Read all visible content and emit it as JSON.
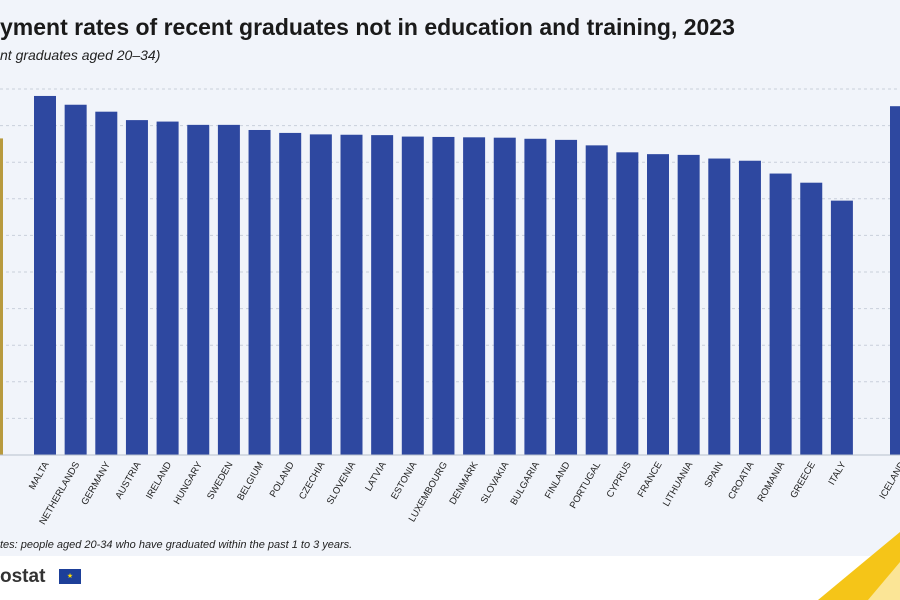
{
  "title": "yment rates of recent graduates not in education and training, 2023",
  "subtitle": "nt graduates aged 20–34)",
  "note": "tes: people aged 20-34 who have graduated within the past 1 to 3 years.",
  "brand": "ostat",
  "eu_flag_icon": "eu-flag-icon",
  "colors": {
    "bar": "#2e48a0",
    "highlight": "#b89a3e",
    "background": "#f1f4fa",
    "gridline": "#c9cfdb",
    "corner_accent": "#f5c518"
  },
  "chart_data": {
    "type": "bar",
    "title": "yment rates of recent graduates not in education and training, 2023",
    "subtitle": "nt graduates aged 20–34)",
    "ylim": [
      0,
      100
    ],
    "grid": true,
    "highlight_value": 86.5,
    "categories": [
      "MALTA",
      "NETHERLANDS",
      "GERMANY",
      "AUSTRIA",
      "IRELAND",
      "HUNGARY",
      "SWEDEN",
      "BELGIUM",
      "POLAND",
      "CZECHIA",
      "SLOVENIA",
      "LATVIA",
      "ESTONIA",
      "LUXEMBOURG",
      "DENMARK",
      "SLOVAKIA",
      "BULGARIA",
      "FINLAND",
      "PORTUGAL",
      "CYPRUS",
      "FRANCE",
      "LITHUANIA",
      "SPAIN",
      "CROATIA",
      "ROMANIA",
      "GREECE",
      "ITALY",
      "ICELAND"
    ],
    "values": [
      98.1,
      95.7,
      93.8,
      91.5,
      91.1,
      90.2,
      90.2,
      88.8,
      88.0,
      87.6,
      87.5,
      87.4,
      87.0,
      86.9,
      86.8,
      86.7,
      86.4,
      86.1,
      84.6,
      82.7,
      82.2,
      82.0,
      81.0,
      80.4,
      76.9,
      74.4,
      69.5,
      95.3
    ]
  }
}
